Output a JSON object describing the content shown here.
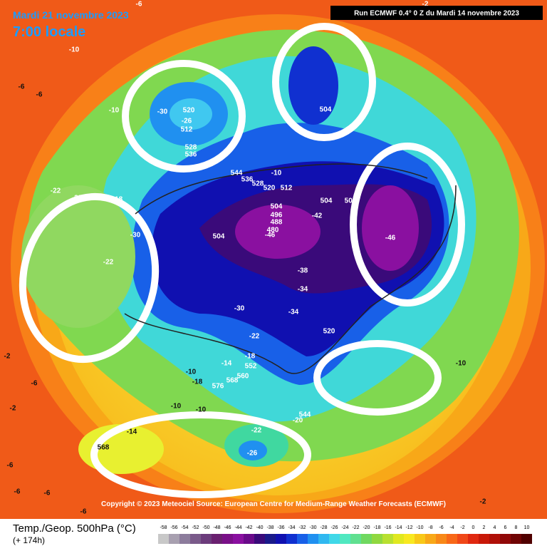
{
  "header": {
    "date": "Mardi 21 novembre 2023",
    "time": "7:00 locale",
    "run": "Run ECMWF 0.4° 0 Z du Mardi 14 novembre 2023"
  },
  "copyright": "Copyright © 2023 Meteociel Source: European Centre for Medium-Range Weather Forecasts (ECMWF)",
  "footer": {
    "title": "Temp./Geop. 500hPa (°C)",
    "lead": "(+ 174h)"
  },
  "legend": {
    "labels": [
      "-58",
      "-56",
      "-54",
      "-52",
      "-50",
      "-48",
      "-46",
      "-44",
      "-42",
      "-40",
      "-38",
      "-36",
      "-34",
      "-32",
      "-30",
      "-28",
      "-26",
      "-24",
      "-22",
      "-20",
      "-18",
      "-16",
      "-14",
      "-12",
      "-10",
      "-8",
      "-6",
      "-4",
      "-2",
      "0",
      "2",
      "4",
      "6",
      "8",
      "10"
    ],
    "colors": [
      "#c8c8c8",
      "#a8a0b0",
      "#8c7c9c",
      "#7a5a8a",
      "#6c3c7c",
      "#6a2070",
      "#7a1088",
      "#8a10a0",
      "#6a0a8a",
      "#3a0a7a",
      "#1a1a8a",
      "#1010b0",
      "#1030d0",
      "#1860e8",
      "#2090f0",
      "#30b8f0",
      "#40d8e8",
      "#50e8c0",
      "#60e090",
      "#70d860",
      "#90d840",
      "#b8e030",
      "#e0e820",
      "#f8e820",
      "#f8c818",
      "#f8a818",
      "#f88818",
      "#f86818",
      "#f04818",
      "#e02810",
      "#c81808",
      "#b01008",
      "#900808",
      "#700404",
      "#500000"
    ]
  },
  "map": {
    "labels": [
      "-6",
      "-10",
      "-6",
      "-6",
      "-10",
      "-30",
      "520",
      "-26",
      "512",
      "528",
      "536",
      "544",
      "536",
      "528",
      "520",
      "512",
      "-10",
      "-22",
      "-22",
      "-18",
      "504",
      "496",
      "488",
      "480",
      "-46",
      "-42",
      "504",
      "504",
      "504",
      "-30",
      "-22",
      "-46",
      "-38",
      "-34",
      "-30",
      "-34",
      "-22",
      "520",
      "-18",
      "552",
      "560",
      "568",
      "576",
      "-14",
      "-10",
      "-18",
      "-10",
      "-10",
      "-14",
      "568",
      "-22",
      "-26",
      "544",
      "-20",
      "504",
      "-10",
      "-2",
      "-6",
      "-2",
      "-6",
      "-6",
      "-6",
      "-6",
      "-2",
      "-2"
    ]
  }
}
